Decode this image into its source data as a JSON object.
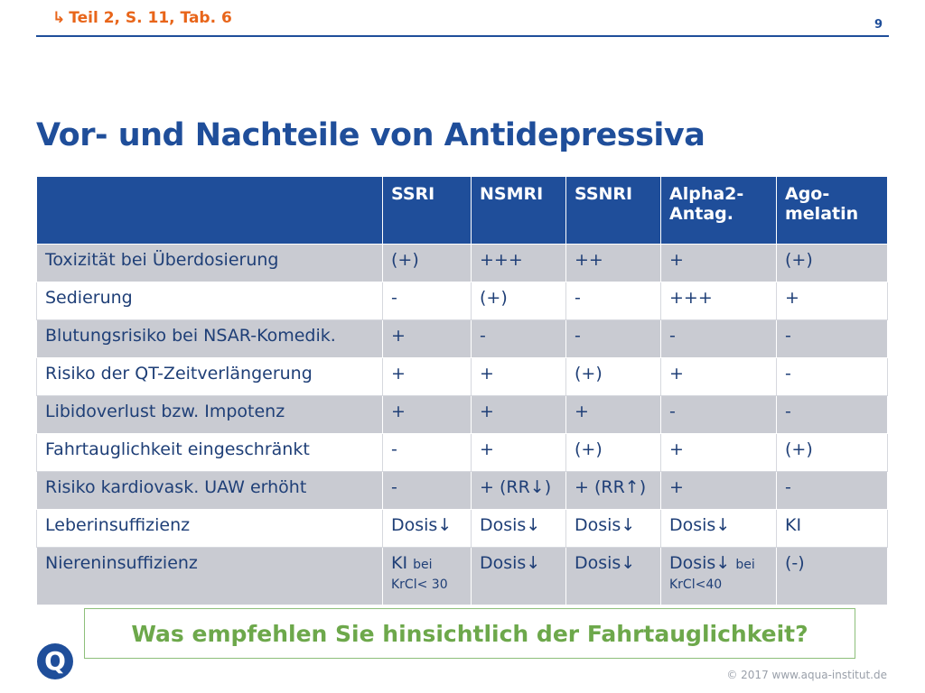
{
  "header": {
    "reference": "Teil 2, S. 11, Tab. 6",
    "page_number": "9"
  },
  "title": "Vor- und Nachteile von Antidepressiva",
  "table": {
    "columns": [
      "",
      "SSRI",
      "NSMRI",
      "SSNRI",
      "Alpha2-Antag.",
      "Ago-melatin"
    ],
    "columns_display": {
      "c0": "",
      "c1": "SSRI",
      "c2": "NSMRI",
      "c3": "SSNRI",
      "c4a": "Alpha2-",
      "c4b": "Antag.",
      "c5a": "Ago-",
      "c5b": "melatin"
    },
    "rows": [
      {
        "label": "Toxizität bei Überdosierung",
        "ssri": "(+)",
        "nsmri": "+++",
        "ssnri": "++",
        "alpha2": "+",
        "agomelatin": "(+)"
      },
      {
        "label": "Sedierung",
        "ssri": "-",
        "nsmri": "(+)",
        "ssnri": "-",
        "alpha2": "+++",
        "agomelatin": "+"
      },
      {
        "label": "Blutungsrisiko bei NSAR-Komedik.",
        "ssri": "+",
        "nsmri": "-",
        "ssnri": "-",
        "alpha2": "-",
        "agomelatin": "-"
      },
      {
        "label": "Risiko der QT-Zeitverlängerung",
        "ssri": "+",
        "nsmri": "+",
        "ssnri": "(+)",
        "alpha2": "+",
        "agomelatin": "-"
      },
      {
        "label": "Libidoverlust bzw. Impotenz",
        "ssri": "+",
        "nsmri": "+",
        "ssnri": "+",
        "alpha2": "-",
        "agomelatin": "-"
      },
      {
        "label": "Fahrtauglichkeit eingeschränkt",
        "ssri": "-",
        "nsmri": "+",
        "ssnri": "(+)",
        "alpha2": "+",
        "agomelatin": "(+)"
      },
      {
        "label": "Risiko kardiovask. UAW erhöht",
        "ssri": "-",
        "nsmri": "+ (RR↓)",
        "ssnri": "+ (RR↑)",
        "alpha2": "+",
        "agomelatin": "-"
      },
      {
        "label": "Leberinsuffizienz",
        "ssri": "Dosis↓",
        "nsmri": "Dosis↓",
        "ssnri": "Dosis↓",
        "alpha2": "Dosis↓",
        "agomelatin": "KI"
      },
      {
        "label": "Niereninsuffizienz",
        "ssri": "KI",
        "ssri_note": "bei KrCl< 30",
        "nsmri": "Dosis↓",
        "ssnri": "Dosis↓",
        "alpha2": "Dosis↓",
        "alpha2_note": "bei KrCl<40",
        "agomelatin": "(-)"
      }
    ]
  },
  "question": "Was empfehlen Sie hinsichtlich der Fahrtauglichkeit?",
  "logo_letter": "Q",
  "copyright": "© 2017 www.aqua-institut.de",
  "colors": {
    "accent_blue": "#1f4e9a",
    "reference_orange": "#e8651a",
    "question_green": "#6da84b",
    "row_grey": "#c9cbd2"
  }
}
